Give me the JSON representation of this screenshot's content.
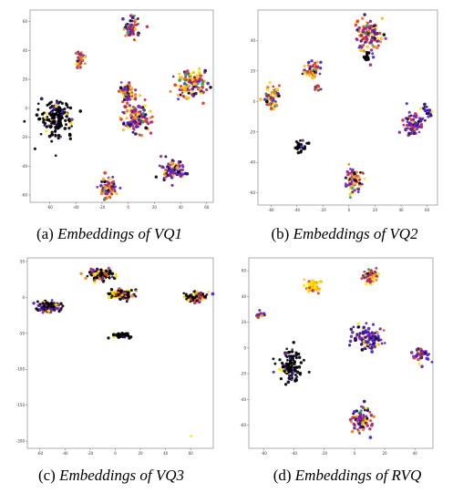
{
  "palette": [
    "#000000",
    "#1f0a6e",
    "#4b1fd1",
    "#6a2a8c",
    "#a1208f",
    "#c0294b",
    "#e03a1f",
    "#f07a1a",
    "#f8c010",
    "#ffe600",
    "#2aa05a"
  ],
  "chart_data": [
    {
      "type": "scatter",
      "panel": "a",
      "caption_prefix": "(a)",
      "caption_title": "Embeddings of VQ1",
      "xlim": [
        -75,
        65
      ],
      "ylim": [
        -65,
        68
      ],
      "xticks": [
        -60,
        -40,
        -20,
        0,
        20,
        40,
        60
      ],
      "yticks": [
        60,
        40,
        20,
        0,
        -20,
        -40,
        -60
      ],
      "clusters": [
        {
          "cx": 2,
          "cy": 55,
          "sx": 3.2,
          "sy": 4.0,
          "n": 70,
          "tone": "mixed"
        },
        {
          "cx": -37,
          "cy": 34,
          "sx": 2.2,
          "sy": 3.5,
          "n": 35,
          "tone": "warm"
        },
        {
          "cx": -55,
          "cy": -7,
          "sx": 6.0,
          "sy": 6.0,
          "n": 170,
          "tone": "dark"
        },
        {
          "cx": -1,
          "cy": 11,
          "sx": 3.2,
          "sy": 3.0,
          "n": 65,
          "tone": "mixed"
        },
        {
          "cx": 7,
          "cy": -6,
          "sx": 5.0,
          "sy": 5.5,
          "n": 140,
          "tone": "mixed"
        },
        {
          "cx": 48,
          "cy": 17,
          "sx": 6.0,
          "sy": 5.0,
          "n": 130,
          "tone": "warm"
        },
        {
          "cx": 33,
          "cy": -43,
          "sx": 4.0,
          "sy": 4.0,
          "n": 90,
          "tone": "cool"
        },
        {
          "cx": -15,
          "cy": -55,
          "sx": 3.5,
          "sy": 3.8,
          "n": 70,
          "tone": "mixed"
        }
      ]
    },
    {
      "type": "scatter",
      "panel": "b",
      "caption_prefix": "(b)",
      "caption_title": "Embeddings of VQ2",
      "xlim": [
        -70,
        68
      ],
      "ylim": [
        -68,
        60
      ],
      "xticks": [
        -60,
        -40,
        -20,
        0,
        20,
        40,
        60
      ],
      "yticks": [
        40,
        20,
        0,
        -20,
        -40,
        -60
      ],
      "clusters": [
        {
          "cx": 15,
          "cy": 43,
          "sx": 4.5,
          "sy": 6.0,
          "n": 120,
          "tone": "mixed"
        },
        {
          "cx": 14,
          "cy": 29,
          "sx": 1.5,
          "sy": 1.5,
          "n": 15,
          "tone": "dark"
        },
        {
          "cx": -28,
          "cy": 20,
          "sx": 3.0,
          "sy": 3.0,
          "n": 60,
          "tone": "warm"
        },
        {
          "cx": -24,
          "cy": 9,
          "sx": 1.3,
          "sy": 1.3,
          "n": 12,
          "tone": "warm"
        },
        {
          "cx": -59,
          "cy": 4,
          "sx": 3.0,
          "sy": 4.0,
          "n": 60,
          "tone": "warm"
        },
        {
          "cx": 49,
          "cy": -14,
          "sx": 3.5,
          "sy": 4.5,
          "n": 75,
          "tone": "cool"
        },
        {
          "cx": 60,
          "cy": -6,
          "sx": 1.8,
          "sy": 1.8,
          "n": 20,
          "tone": "cool"
        },
        {
          "cx": -37,
          "cy": -30,
          "sx": 1.8,
          "sy": 2.2,
          "n": 25,
          "tone": "dark"
        },
        {
          "cx": 4,
          "cy": -52,
          "sx": 3.0,
          "sy": 4.5,
          "n": 70,
          "tone": "mixed"
        }
      ]
    },
    {
      "type": "scatter",
      "panel": "c",
      "caption_prefix": "(c)",
      "caption_title": "Embeddings of VQ3",
      "xlim": [
        -70,
        78
      ],
      "ylim": [
        -210,
        55
      ],
      "xticks": [
        -60,
        -40,
        -20,
        0,
        20,
        40,
        60
      ],
      "yticks": [
        50,
        0,
        -50,
        -100,
        -150,
        -200
      ],
      "clusters": [
        {
          "cx": -12,
          "cy": 32,
          "sx": 5.5,
          "sy": 3.5,
          "n": 130,
          "tone": "darkwarm"
        },
        {
          "cx": -53,
          "cy": -14,
          "sx": 4.5,
          "sy": 3.5,
          "n": 90,
          "tone": "darkcool"
        },
        {
          "cx": 4,
          "cy": 4,
          "sx": 5.5,
          "sy": 3.5,
          "n": 110,
          "tone": "darkwarm"
        },
        {
          "cx": 64,
          "cy": 0,
          "sx": 4.5,
          "sy": 4.0,
          "n": 90,
          "tone": "darkwarm"
        },
        {
          "cx": 5,
          "cy": -53,
          "sx": 3.5,
          "sy": 1.8,
          "n": 45,
          "tone": "dark"
        },
        {
          "cx": 60,
          "cy": -193,
          "sx": 0.2,
          "sy": 0.2,
          "n": 1,
          "tone": "yellow"
        }
      ]
    },
    {
      "type": "scatter",
      "panel": "d",
      "caption_prefix": "(d)",
      "caption_title": "Embeddings of RVQ",
      "xlim": [
        -70,
        52
      ],
      "ylim": [
        -78,
        70
      ],
      "xticks": [
        -60,
        -40,
        -20,
        0,
        20,
        40
      ],
      "yticks": [
        60,
        40,
        20,
        0,
        -20,
        -40,
        -60
      ],
      "clusters": [
        {
          "cx": 10,
          "cy": 55,
          "sx": 3.0,
          "sy": 3.0,
          "n": 55,
          "tone": "warm"
        },
        {
          "cx": -28,
          "cy": 48,
          "sx": 2.5,
          "sy": 2.5,
          "n": 45,
          "tone": "yellow"
        },
        {
          "cx": -62,
          "cy": 25,
          "sx": 1.5,
          "sy": 1.5,
          "n": 15,
          "tone": "warm"
        },
        {
          "cx": 9,
          "cy": 8,
          "sx": 4.5,
          "sy": 5.0,
          "n": 110,
          "tone": "cool"
        },
        {
          "cx": 44,
          "cy": -5,
          "sx": 2.5,
          "sy": 3.0,
          "n": 50,
          "tone": "cool"
        },
        {
          "cx": -42,
          "cy": -13,
          "sx": 3.5,
          "sy": 6.0,
          "n": 110,
          "tone": "dark"
        },
        {
          "cx": 5,
          "cy": -55,
          "sx": 3.5,
          "sy": 6.0,
          "n": 90,
          "tone": "mixed"
        }
      ]
    }
  ]
}
